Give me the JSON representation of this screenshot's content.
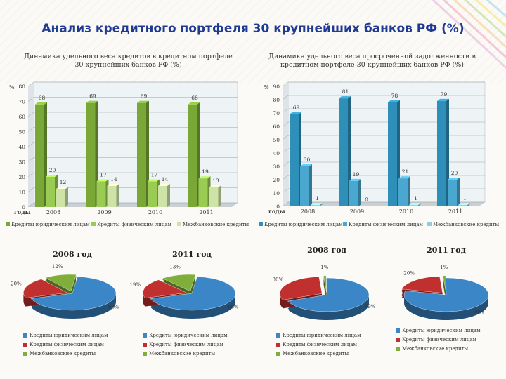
{
  "title": "Анализ кредитного портфеля 30 крупнейших банков РФ (%)",
  "colors": {
    "title": "#1f3a93",
    "corporate": "#3b86c6",
    "individuals": "#c0302e",
    "interbank": "#7fae3a",
    "green_bar": "#79a836",
    "teal_bar": "#2e8fb8"
  },
  "chart_data": [
    {
      "type": "bar",
      "title": "Динамика удельного веса кредитов в кредитном портфеле 30 крупнейших банков РФ (%)",
      "ylabel": "%",
      "xlabel": "годы",
      "ylim": [
        0,
        80
      ],
      "yticks": [
        "0",
        "10",
        "20",
        "30",
        "40",
        "50",
        "60",
        "70",
        "80"
      ],
      "categories": [
        "2008",
        "2009",
        "2010",
        "2011"
      ],
      "series": [
        {
          "name": "Кредиты юридическим лицам",
          "values": [
            68,
            69,
            69,
            68
          ],
          "labels": [
            "68",
            "69",
            "69",
            "68"
          ]
        },
        {
          "name": "Кредиты физическим лицам",
          "values": [
            20,
            17,
            17,
            19
          ],
          "labels": [
            "20",
            "17",
            "17",
            "19"
          ]
        },
        {
          "name": "Межбанковские кредиты",
          "values": [
            12,
            14,
            14,
            13
          ],
          "labels": [
            "12",
            "14",
            "14",
            "13"
          ]
        }
      ],
      "legend": [
        "Кредиты юридическим лицам",
        "Кредиты физическим лицам",
        "Межбанковские кредиты"
      ]
    },
    {
      "type": "bar",
      "title": "Динамика удельного веса просроченной задолженности в кредитном портфеле 30 крупнейших банков РФ (%)",
      "ylabel": "%",
      "xlabel": "годы",
      "ylim": [
        0,
        90
      ],
      "yticks": [
        "0",
        "10",
        "20",
        "30",
        "40",
        "50",
        "60",
        "70",
        "80",
        "90"
      ],
      "categories": [
        "2008",
        "2009",
        "2010",
        "2011"
      ],
      "series": [
        {
          "name": "Кредиты юридическим лицам",
          "values": [
            69,
            81,
            78,
            79
          ],
          "labels": [
            "69",
            "81",
            "78",
            "79"
          ]
        },
        {
          "name": "Кредиты физическим лицам",
          "values": [
            30,
            19,
            21,
            20
          ],
          "labels": [
            "30",
            "19",
            "21",
            "20"
          ]
        },
        {
          "name": "Межбанковские кредиты",
          "values": [
            1,
            0,
            1,
            1
          ],
          "labels": [
            "1",
            "0",
            "1",
            "1"
          ]
        }
      ],
      "legend": [
        "Кредиты юридическим лицам",
        "Кредиты физическим лицам",
        "Межбанковские кредиты"
      ]
    },
    {
      "type": "pie",
      "title": "2008 год",
      "values": [
        68,
        20,
        12
      ],
      "labels": [
        "68%",
        "20%",
        "12%"
      ],
      "legend": [
        "Кредиты юридическим лицам",
        "Кредиты физическим лицам",
        "Межбанковские кредиты"
      ]
    },
    {
      "type": "pie",
      "title": "2011 год",
      "values": [
        68,
        19,
        13
      ],
      "labels": [
        "68%",
        "19%",
        "13%"
      ],
      "legend": [
        "Кредиты юридическим лицам",
        "Кредиты физическим лицам",
        "Межбанковские кредиты"
      ]
    },
    {
      "type": "pie",
      "title": "2008 год",
      "values": [
        69,
        30,
        1
      ],
      "labels": [
        "69%",
        "30%",
        "1%"
      ],
      "legend": [
        "Кредиты юридическим лицам",
        "Кредиты физическим лицам",
        "Межбанковские кредиты"
      ]
    },
    {
      "type": "pie",
      "title": "2011 год",
      "values": [
        79,
        20,
        1
      ],
      "labels": [
        "79%",
        "20%",
        "1%"
      ],
      "legend": [
        "Кредиты юридическим лицам",
        "Кредиты физическим лицам",
        "Межбанковские кредиты"
      ]
    }
  ]
}
